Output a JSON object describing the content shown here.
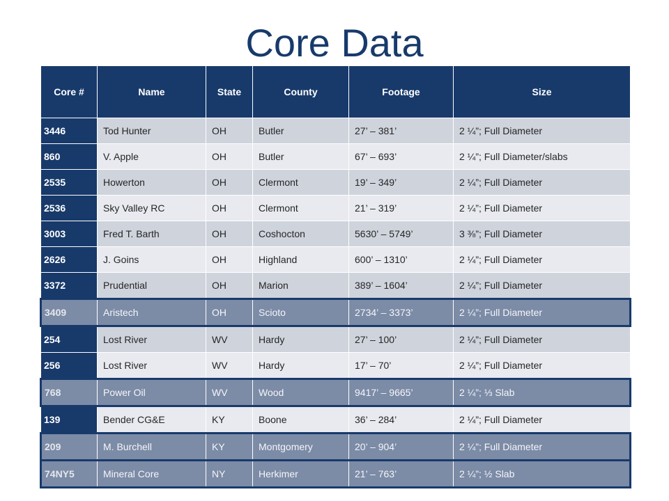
{
  "title": "Core Data",
  "colors": {
    "header_bg": "#183a6b",
    "title": "#183a6b",
    "row_odd": "#cfd3dc",
    "row_even": "#e8eaef",
    "row_highlight": "#7c8ba6"
  },
  "table": {
    "headers": [
      "Core #",
      "Name",
      "State",
      "County",
      "Footage",
      "Size"
    ],
    "rows": [
      {
        "core": "3446",
        "name": "Tod Hunter",
        "state": "OH",
        "county": "Butler",
        "footage": "27’ – 381’",
        "size": "2 ¼”; Full Diameter",
        "highlighted": false
      },
      {
        "core": "860",
        "name": "V. Apple",
        "state": "OH",
        "county": "Butler",
        "footage": "67’ – 693’",
        "size": "2 ¼”; Full Diameter/slabs",
        "highlighted": false
      },
      {
        "core": "2535",
        "name": "Howerton",
        "state": "OH",
        "county": "Clermont",
        "footage": "19’ – 349’",
        "size": "2 ¼”; Full Diameter",
        "highlighted": false
      },
      {
        "core": "2536",
        "name": "Sky Valley RC",
        "state": "OH",
        "county": "Clermont",
        "footage": "21’ – 319’",
        "size": "2 ¼”; Full Diameter",
        "highlighted": false
      },
      {
        "core": "3003",
        "name": "Fred T. Barth",
        "state": "OH",
        "county": "Coshocton",
        "footage": "5630’ – 5749’",
        "size": "3 ⅜”; Full Diameter",
        "highlighted": false
      },
      {
        "core": "2626",
        "name": "J. Goins",
        "state": "OH",
        "county": "Highland",
        "footage": "600’ – 1310’",
        "size": "2 ¼”; Full Diameter",
        "highlighted": false
      },
      {
        "core": "3372",
        "name": "Prudential",
        "state": "OH",
        "county": "Marion",
        "footage": "389’ – 1604’",
        "size": "2 ¼”; Full Diameter",
        "highlighted": false
      },
      {
        "core": "3409",
        "name": "Aristech",
        "state": "OH",
        "county": "Scioto",
        "footage": "2734’ – 3373’",
        "size": "2 ¼”; Full Diameter",
        "highlighted": true
      },
      {
        "core": "254",
        "name": "Lost River",
        "state": "WV",
        "county": "Hardy",
        "footage": "27’ – 100’",
        "size": "2 ¼”; Full Diameter",
        "highlighted": false
      },
      {
        "core": "256",
        "name": "Lost River",
        "state": "WV",
        "county": "Hardy",
        "footage": "17’ – 70’",
        "size": "2 ¼”; Full Diameter",
        "highlighted": false
      },
      {
        "core": "768",
        "name": "Power Oil",
        "state": "WV",
        "county": "Wood",
        "footage": "9417’ – 9665’",
        "size": "2 ¼”; ⅓ Slab",
        "highlighted": true
      },
      {
        "core": "139",
        "name": "Bender CG&E",
        "state": "KY",
        "county": "Boone",
        "footage": "36’ – 284’",
        "size": "2 ¼”; Full Diameter",
        "highlighted": false
      },
      {
        "core": "209",
        "name": "M. Burchell",
        "state": "KY",
        "county": "Montgomery",
        "footage": "20’ – 904’",
        "size": "2 ¼”; Full Diameter",
        "highlighted": true
      },
      {
        "core": "74NY5",
        "name": "Mineral Core",
        "state": "NY",
        "county": "Herkimer",
        "footage": "21’ – 763’",
        "size": "2 ¼”; ½ Slab",
        "highlighted": true
      }
    ]
  }
}
